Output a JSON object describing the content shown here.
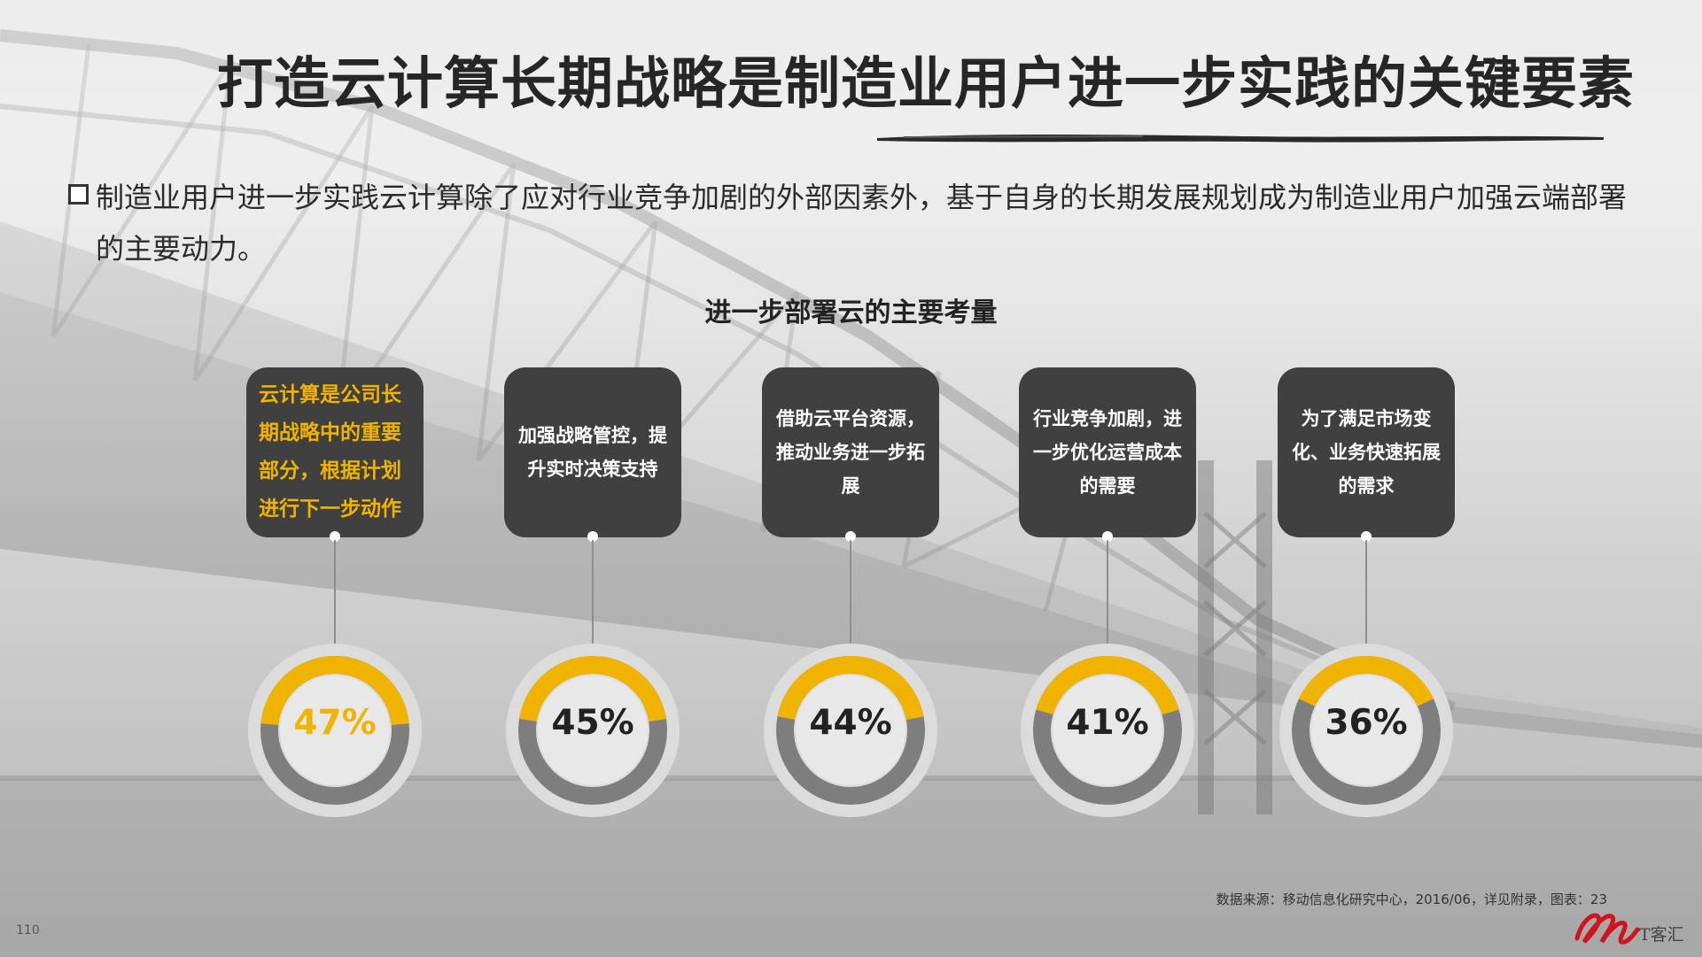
{
  "title": "打造云计算长期战略是制造业用户进一步实践的关键要素",
  "intro": "制造业用户进一步实践云计算除了应对行业竞争加剧的外部因素外，基于自身的长期发展规划成为制造业用户加强云端部署的主要动力。",
  "chart_data": {
    "type": "donut",
    "title": "进一步部署云的主要考量",
    "categories": [
      "云计算是公司长期战略中的重要部分，根据计划进行下一步动作",
      "加强战略管控，提升实时决策支持",
      "借助云平台资源，推动业务进一步拓展",
      "行业竞争加剧，进一步优化运营成本的需要",
      "为了满足市场变化、业务快速拓展的需求"
    ],
    "values": [
      47,
      45,
      44,
      41,
      36
    ],
    "value_labels": [
      "47%",
      "45%",
      "44%",
      "41%",
      "36%"
    ],
    "unit": "%",
    "highlight_index": 0
  },
  "source": "数据来源：移动信息化研究中心，2016/06，详见附录，图表：23",
  "page_number": "110",
  "logo_text": "T客汇",
  "colors": {
    "accent": "#F0B400",
    "card_bg": "#404040",
    "ring_track": "#7E7E7E",
    "ring_outer": "#DCDCDC",
    "title": "#262626"
  }
}
